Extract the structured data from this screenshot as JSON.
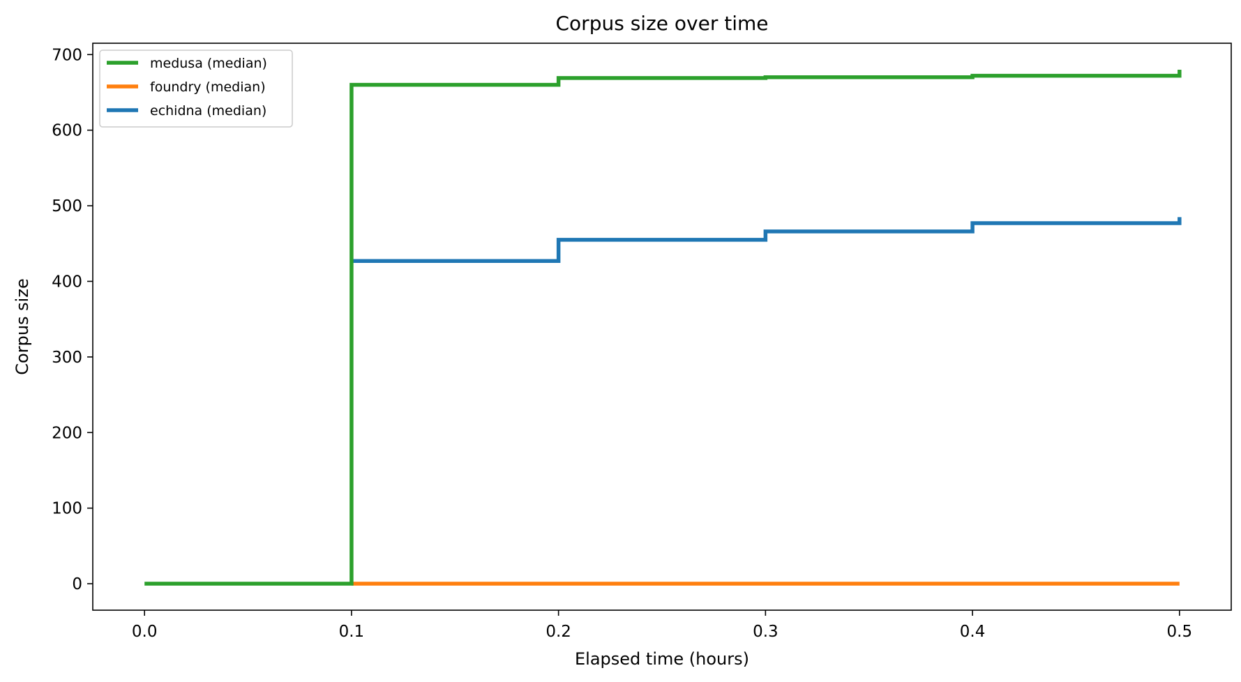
{
  "chart_data": {
    "type": "line",
    "title": "Corpus size over time",
    "xlabel": "Elapsed time (hours)",
    "ylabel": "Corpus size",
    "xlim": [
      -0.025,
      0.525
    ],
    "ylim": [
      -35,
      715
    ],
    "xticks": [
      0.0,
      0.1,
      0.2,
      0.3,
      0.4,
      0.5
    ],
    "xtick_labels": [
      "0.0",
      "0.1",
      "0.2",
      "0.3",
      "0.4",
      "0.5"
    ],
    "yticks": [
      0,
      100,
      200,
      300,
      400,
      500,
      600,
      700
    ],
    "ytick_labels": [
      "0",
      "100",
      "200",
      "300",
      "400",
      "500",
      "600",
      "700"
    ],
    "grid": false,
    "legend_position": "top-left",
    "series": [
      {
        "name": "echidna (median)",
        "color": "#1f77b4",
        "step": "post",
        "x": [
          0.1,
          0.2,
          0.3,
          0.4,
          0.5
        ],
        "y": [
          427,
          455,
          466,
          477,
          485
        ]
      },
      {
        "name": "foundry (median)",
        "color": "#ff7f0e",
        "step": "post",
        "x": [
          0.1,
          0.2,
          0.3,
          0.4,
          0.5
        ],
        "y": [
          0,
          0,
          0,
          0,
          0
        ]
      },
      {
        "name": "medusa (median)",
        "color": "#2ca02c",
        "step": "post",
        "x": [
          0.0,
          0.1,
          0.2,
          0.3,
          0.4,
          0.5
        ],
        "y": [
          0,
          660,
          669,
          670,
          672,
          680
        ]
      }
    ],
    "legend_order": [
      "medusa (median)",
      "foundry (median)",
      "echidna (median)"
    ]
  }
}
